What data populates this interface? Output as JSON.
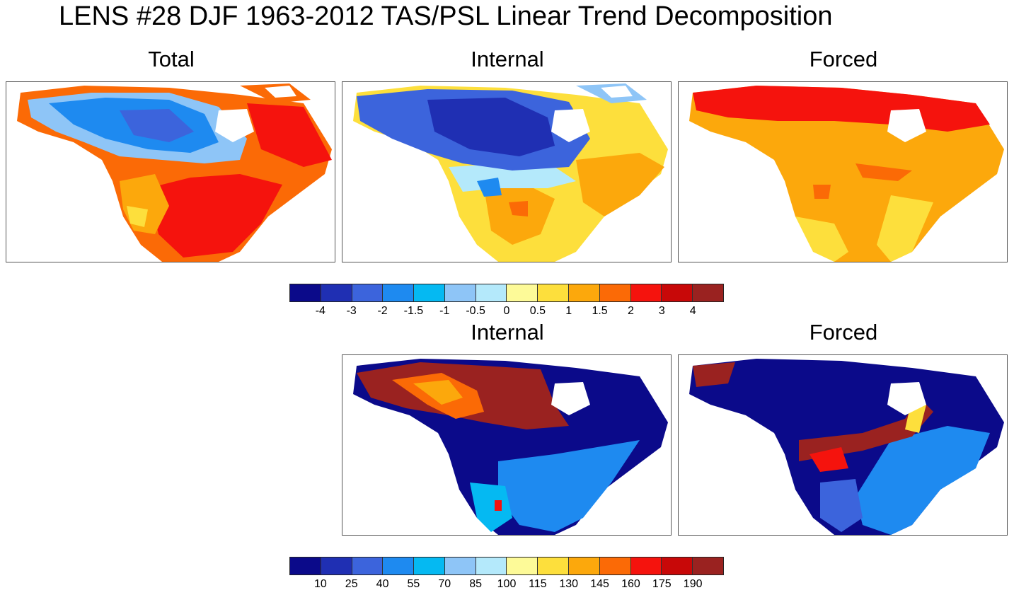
{
  "title": "LENS #28 DJF 1963-2012 TAS/PSL Linear Trend Decomposition",
  "panels_top": [
    {
      "label": "Total"
    },
    {
      "label": "Internal"
    },
    {
      "label": "Forced"
    }
  ],
  "panels_bottom": [
    {
      "label": "Internal"
    },
    {
      "label": "Forced"
    }
  ],
  "colorbar_top": {
    "colors": [
      "#0b0a8a",
      "#1f2fb3",
      "#3c64dc",
      "#1e8af0",
      "#05b9f2",
      "#8ec5f7",
      "#b4e9fb",
      "#fdfa98",
      "#fddf3c",
      "#fca80c",
      "#fb6a06",
      "#f5130d",
      "#c80808",
      "#9a2220"
    ],
    "labels": [
      "-4",
      "-3",
      "-2",
      "-1.5",
      "-1",
      "-0.5",
      "0",
      "0.5",
      "1",
      "1.5",
      "2",
      "3",
      "4"
    ]
  },
  "colorbar_bottom": {
    "colors": [
      "#0b0a8a",
      "#1f2fb3",
      "#3c64dc",
      "#1e8af0",
      "#05b9f2",
      "#8ec5f7",
      "#b4e9fb",
      "#fdfa98",
      "#fddf3c",
      "#fca80c",
      "#fb6a06",
      "#f5130d",
      "#c80808",
      "#9a2220"
    ],
    "labels": [
      "10",
      "25",
      "40",
      "55",
      "70",
      "85",
      "100",
      "115",
      "130",
      "145",
      "160",
      "175",
      "190"
    ]
  }
}
